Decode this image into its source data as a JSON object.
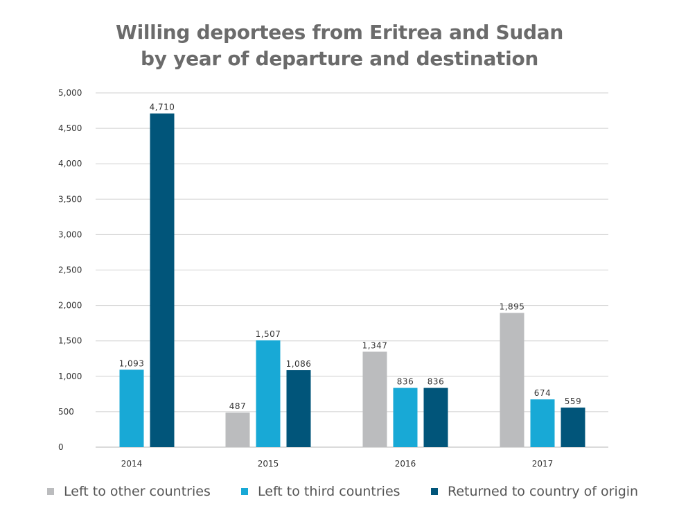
{
  "chart_data": {
    "type": "bar",
    "title": [
      "Willing deportees from Eritrea and Sudan",
      "by year of departure and destination"
    ],
    "categories": [
      "2014",
      "2015",
      "2016",
      "2017"
    ],
    "series": [
      {
        "name": "Left to other countries",
        "color": "#bbbcbe",
        "values": [
          null,
          487,
          1347,
          1895
        ],
        "labels": [
          "",
          "487",
          "1,347",
          "1,895"
        ]
      },
      {
        "name": "Left to third countries",
        "color": "#18a9d6",
        "values": [
          1093,
          1507,
          836,
          674
        ],
        "labels": [
          "1,093",
          "1,507",
          "836",
          "674"
        ]
      },
      {
        "name": "Returned to country of origin",
        "color": "#01557a",
        "values": [
          4710,
          1086,
          836,
          559
        ],
        "labels": [
          "4,710",
          "1,086",
          "836",
          "559"
        ]
      }
    ],
    "y_ticks": [
      0,
      500,
      1000,
      1500,
      2000,
      2500,
      3000,
      3500,
      4000,
      4500,
      5000
    ],
    "y_tick_labels": [
      "0",
      "500",
      "1,000",
      "1,500",
      "2,000",
      "2,500",
      "3,000",
      "3,500",
      "4,000",
      "4,500",
      "5,000"
    ],
    "ylim": [
      0,
      5000
    ],
    "xlabel": "",
    "ylabel": "",
    "grid": true,
    "legend_position": "bottom"
  }
}
